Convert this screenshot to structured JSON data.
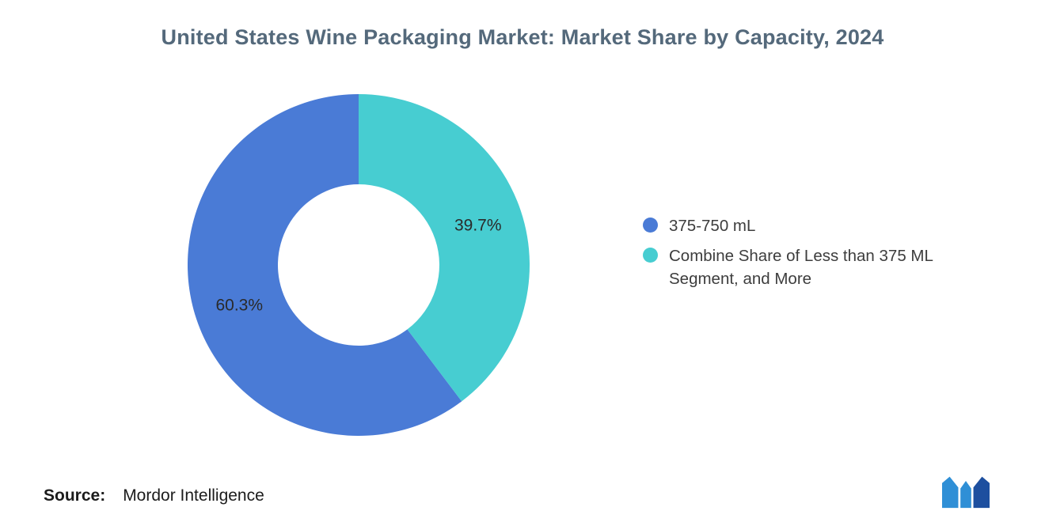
{
  "page": {
    "title": "United States Wine Packaging Market: Market Share by Capacity, 2024",
    "source_label": "Source:",
    "source_text": "Mordor Intelligence"
  },
  "chart_data": {
    "type": "pie",
    "donut": true,
    "title": "United States Wine Packaging Market: Market Share by Capacity, 2024",
    "legend_position": "right",
    "labels_on_slices": true,
    "series": [
      {
        "name": "375-750 mL",
        "value": 60.3,
        "label": "60.3%",
        "color": "#4A7BD6"
      },
      {
        "name": "Combine Share of Less than 375 ML Segment, and More",
        "value": 39.7,
        "label": "39.7%",
        "color": "#47CDD1"
      }
    ]
  },
  "branding": {
    "logo_name": "mordor-intelligence-logo",
    "logo_light": "#2F8FD6",
    "logo_dark": "#1D4F9F"
  }
}
